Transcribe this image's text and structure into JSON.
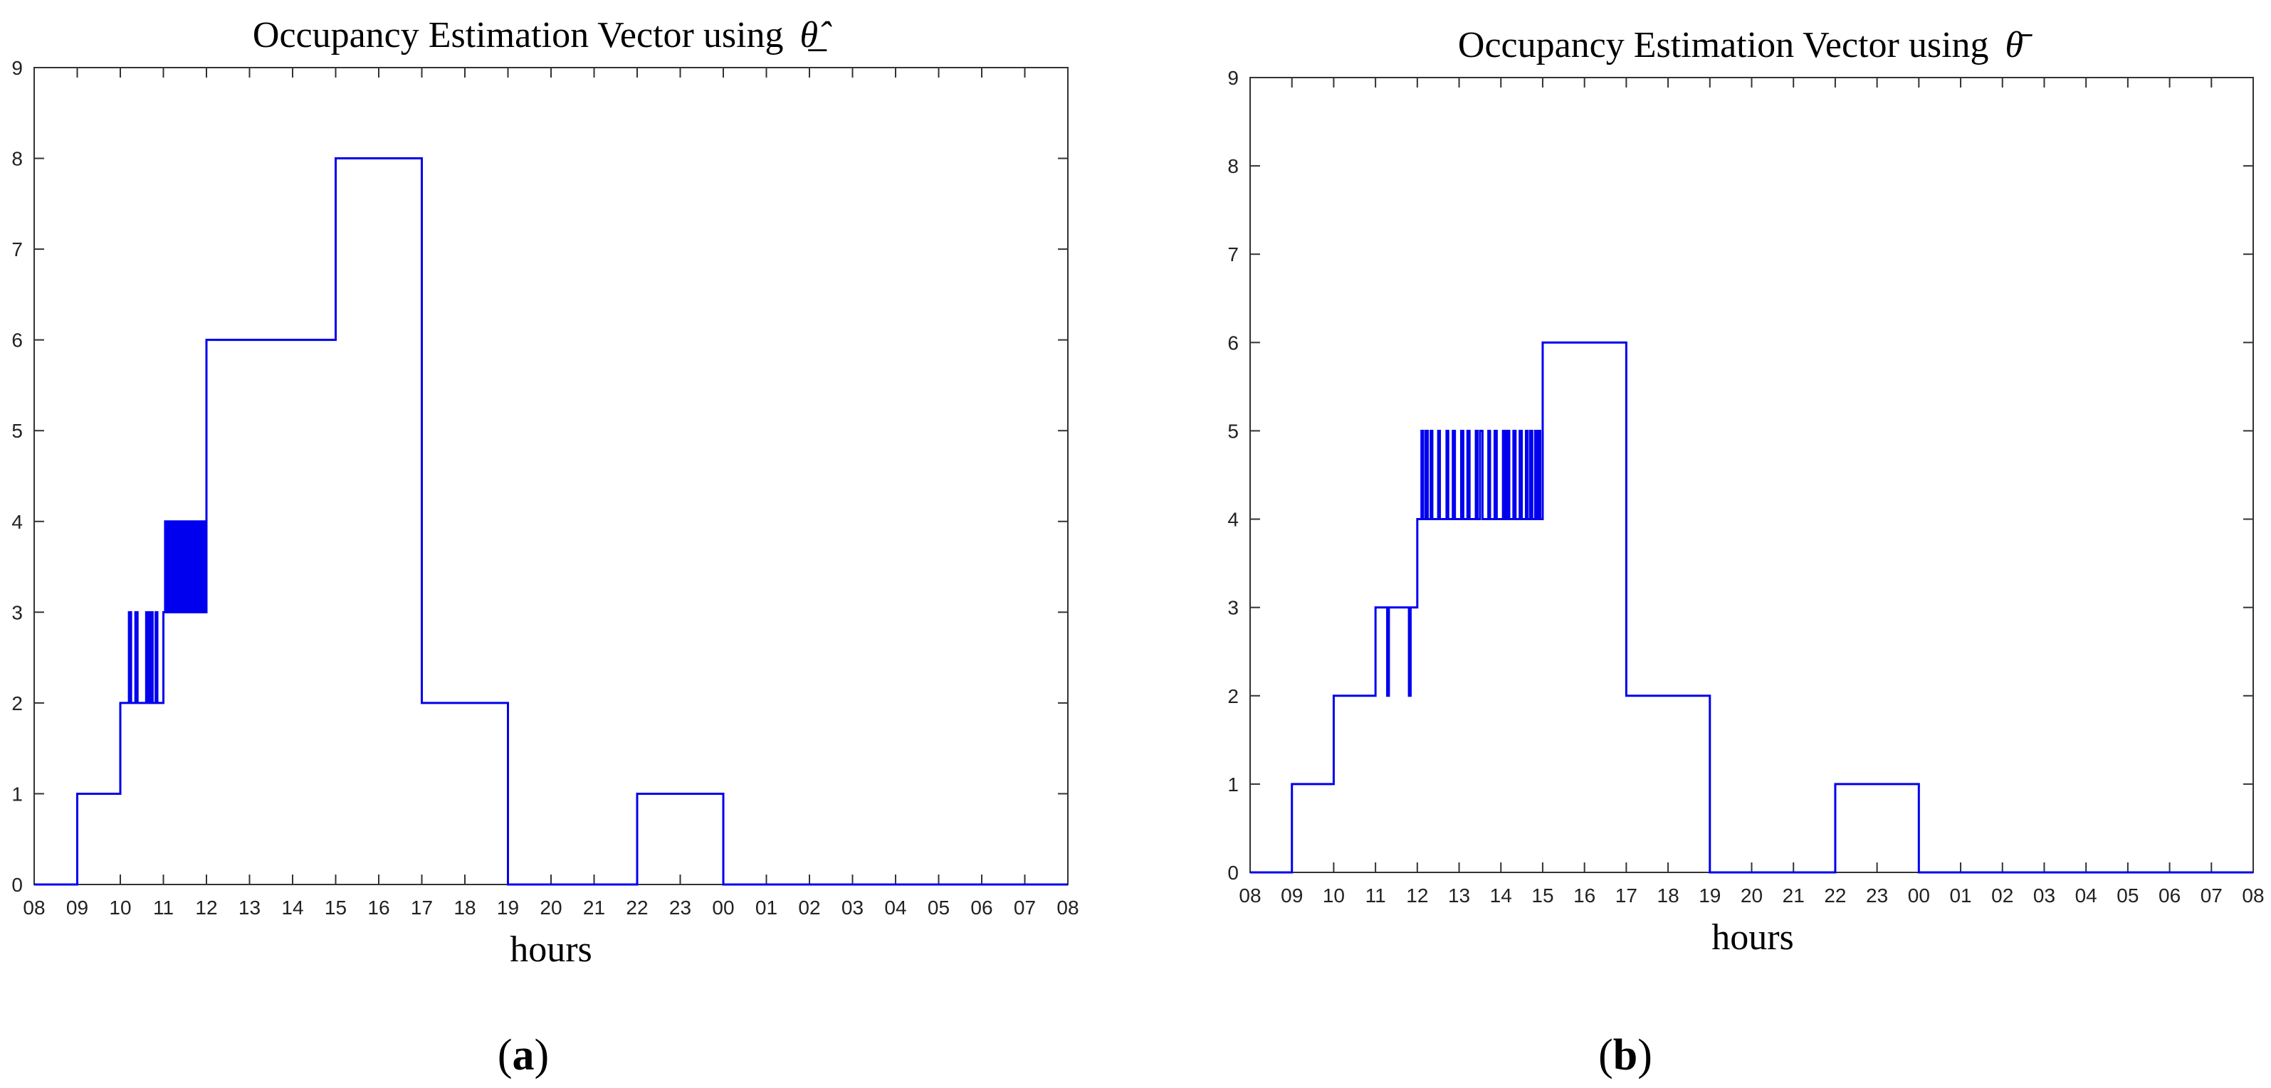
{
  "chart_data": [
    {
      "type": "line",
      "title": "Occupancy Estimation Vector using",
      "title_symbol": "θ̲̂",
      "xlabel": "hours",
      "ylabel": "",
      "caption_letter": "a",
      "x_categories": [
        "08",
        "09",
        "10",
        "11",
        "12",
        "13",
        "14",
        "15",
        "16",
        "17",
        "18",
        "19",
        "20",
        "21",
        "22",
        "23",
        "00",
        "01",
        "02",
        "03",
        "04",
        "05",
        "06",
        "07",
        "08"
      ],
      "ylim": [
        0,
        9
      ],
      "yticks": [
        "0",
        "1",
        "2",
        "3",
        "4",
        "5",
        "6",
        "7",
        "8",
        "9"
      ],
      "grid": false,
      "series": [
        {
          "name": "occupancy",
          "color": "#0000ee",
          "steps": [
            [
              0,
              0
            ],
            [
              1,
              1
            ],
            [
              2,
              2
            ],
            [
              2.2,
              3
            ],
            [
              2.25,
              2
            ],
            [
              2.35,
              3
            ],
            [
              2.4,
              2
            ],
            [
              2.6,
              3
            ],
            [
              2.65,
              2
            ],
            [
              2.7,
              3
            ],
            [
              2.75,
              2
            ],
            [
              2.82,
              3
            ],
            [
              2.86,
              2
            ],
            [
              3,
              3
            ],
            [
              3.04,
              4
            ],
            [
              3.08,
              3
            ],
            [
              3.12,
              4
            ],
            [
              3.16,
              3
            ],
            [
              3.2,
              4
            ],
            [
              3.24,
              3
            ],
            [
              3.28,
              4
            ],
            [
              3.32,
              3
            ],
            [
              3.36,
              4
            ],
            [
              3.4,
              3
            ],
            [
              3.44,
              4
            ],
            [
              3.48,
              3
            ],
            [
              3.52,
              4
            ],
            [
              3.56,
              3
            ],
            [
              3.6,
              4
            ],
            [
              3.64,
              3
            ],
            [
              3.68,
              4
            ],
            [
              3.72,
              3
            ],
            [
              3.76,
              4
            ],
            [
              3.8,
              3
            ],
            [
              3.84,
              4
            ],
            [
              3.88,
              3
            ],
            [
              3.92,
              4
            ],
            [
              3.96,
              3
            ],
            [
              4,
              6
            ],
            [
              7,
              8
            ],
            [
              9,
              2
            ],
            [
              11,
              0
            ],
            [
              14,
              1
            ],
            [
              16,
              0
            ],
            [
              24,
              0
            ]
          ]
        }
      ]
    },
    {
      "type": "line",
      "title": "Occupancy Estimation Vector using",
      "title_symbol": "θ̄̄",
      "xlabel": "hours",
      "ylabel": "",
      "caption_letter": "b",
      "x_categories": [
        "08",
        "09",
        "10",
        "11",
        "12",
        "13",
        "14",
        "15",
        "16",
        "17",
        "18",
        "19",
        "20",
        "21",
        "22",
        "23",
        "00",
        "01",
        "02",
        "03",
        "04",
        "05",
        "06",
        "07",
        "08"
      ],
      "ylim": [
        0,
        9
      ],
      "yticks": [
        "0",
        "1",
        "2",
        "3",
        "4",
        "5",
        "6",
        "7",
        "8",
        "9"
      ],
      "grid": false,
      "series": [
        {
          "name": "occupancy",
          "color": "#0000ee",
          "steps": [
            [
              0,
              0
            ],
            [
              1,
              1
            ],
            [
              2,
              2
            ],
            [
              3,
              3
            ],
            [
              3.28,
              2
            ],
            [
              3.32,
              3
            ],
            [
              3.8,
              2
            ],
            [
              3.84,
              3
            ],
            [
              4,
              4
            ],
            [
              4.1,
              5
            ],
            [
              4.14,
              4
            ],
            [
              4.2,
              5
            ],
            [
              4.25,
              4
            ],
            [
              4.32,
              5
            ],
            [
              4.36,
              4
            ],
            [
              4.5,
              5
            ],
            [
              4.54,
              4
            ],
            [
              4.7,
              5
            ],
            [
              4.74,
              4
            ],
            [
              4.85,
              5
            ],
            [
              4.9,
              4
            ],
            [
              5.05,
              5
            ],
            [
              5.1,
              4
            ],
            [
              5.2,
              5
            ],
            [
              5.25,
              4
            ],
            [
              5.4,
              5
            ],
            [
              5.44,
              4
            ],
            [
              5.5,
              5
            ],
            [
              5.56,
              4
            ],
            [
              5.7,
              5
            ],
            [
              5.74,
              4
            ],
            [
              5.85,
              5
            ],
            [
              5.9,
              4
            ],
            [
              6.05,
              5
            ],
            [
              6.1,
              4
            ],
            [
              6.15,
              5
            ],
            [
              6.2,
              4
            ],
            [
              6.3,
              5
            ],
            [
              6.35,
              4
            ],
            [
              6.45,
              5
            ],
            [
              6.5,
              4
            ],
            [
              6.6,
              5
            ],
            [
              6.64,
              4
            ],
            [
              6.7,
              5
            ],
            [
              6.75,
              4
            ],
            [
              6.82,
              5
            ],
            [
              6.86,
              4
            ],
            [
              6.9,
              5
            ],
            [
              6.94,
              4
            ],
            [
              7,
              6
            ],
            [
              9,
              2
            ],
            [
              11,
              0
            ],
            [
              14,
              1
            ],
            [
              16,
              0
            ],
            [
              24,
              0
            ]
          ]
        }
      ]
    }
  ]
}
